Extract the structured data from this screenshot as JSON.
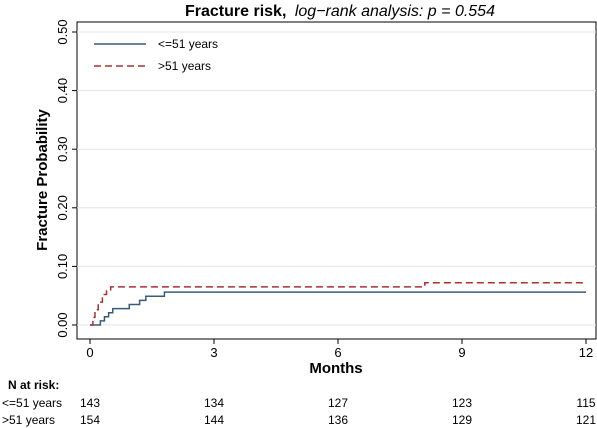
{
  "chart_data": {
    "type": "line",
    "title_bold": "Fracture risk,",
    "title_italic": "log−rank analysis: p = 0.554",
    "xlabel": "Months",
    "ylabel": "Fracture Probability",
    "xlim": [
      0,
      12
    ],
    "ylim": [
      0,
      0.5
    ],
    "x_ticks": [
      0,
      3,
      6,
      9,
      12
    ],
    "x_tick_labels": [
      "0",
      "3",
      "6",
      "9",
      "12"
    ],
    "y_ticks": [
      0,
      0.1,
      0.2,
      0.3,
      0.4,
      0.5
    ],
    "y_tick_labels": [
      "0.00",
      "0.10",
      "0.20",
      "0.30",
      "0.40",
      "0.50"
    ],
    "grid": true,
    "legend_position": "top-left",
    "series": [
      {
        "name": "<=51 years",
        "color": "#3a5a7a",
        "dash": "solid",
        "x": [
          0,
          0.25,
          0.35,
          0.45,
          0.55,
          0.8,
          0.95,
          1.05,
          1.2,
          1.35,
          1.55,
          1.8,
          12
        ],
        "y": [
          0,
          0.007,
          0.014,
          0.021,
          0.028,
          0.028,
          0.035,
          0.035,
          0.042,
          0.049,
          0.049,
          0.056,
          0.056
        ]
      },
      {
        "name": ">51 years",
        "color": "#a83232",
        "dash": "dashed",
        "x": [
          0,
          0.07,
          0.12,
          0.2,
          0.3,
          0.4,
          0.5,
          8.1,
          12
        ],
        "y": [
          0,
          0.013,
          0.026,
          0.039,
          0.052,
          0.058,
          0.065,
          0.072,
          0.072
        ]
      }
    ],
    "risk_table": {
      "header": "N at risk:",
      "time_points": [
        0,
        3,
        6,
        9,
        12
      ],
      "rows": [
        {
          "label": "<=51 years",
          "values": [
            "143",
            "134",
            "127",
            "123",
            "115"
          ]
        },
        {
          "label": ">51 years",
          "values": [
            "154",
            "144",
            "136",
            "129",
            "121"
          ]
        }
      ]
    }
  }
}
